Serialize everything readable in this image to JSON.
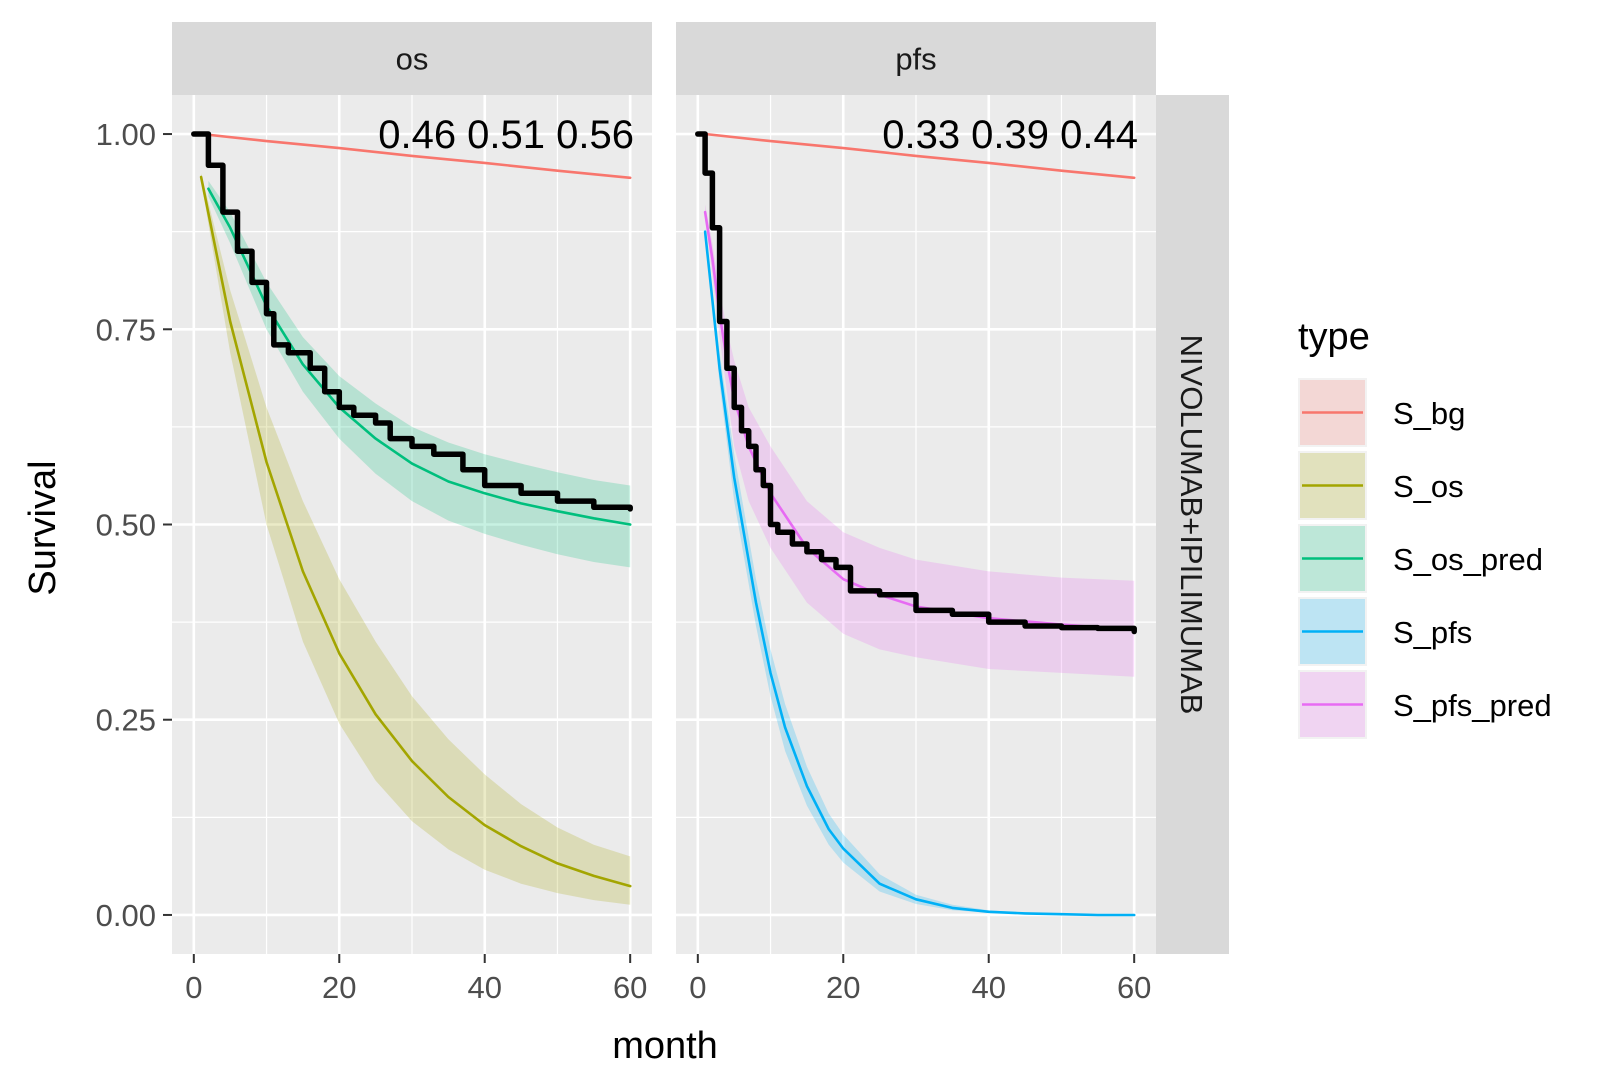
{
  "chart_data": {
    "type": "line",
    "xlabel": "month",
    "ylabel": "Survival",
    "xlim": [
      -3,
      63
    ],
    "ylim": [
      -0.05,
      1.05
    ],
    "x_ticks": [
      "0",
      "20",
      "40",
      "60"
    ],
    "y_ticks": [
      "0.00",
      "0.25",
      "0.50",
      "0.75",
      "1.00"
    ],
    "row_strip": "NIVOLUMAB+IPILIMUMAB",
    "legend": {
      "title": "type",
      "position": "right",
      "entries": [
        {
          "key": "S_bg",
          "label": "S_bg",
          "color": "#F8766D"
        },
        {
          "key": "S_os",
          "label": "S_os",
          "color": "#A3A500"
        },
        {
          "key": "S_os_pred",
          "label": "S_os_pred",
          "color": "#00BF7D"
        },
        {
          "key": "S_pfs",
          "label": "S_pfs",
          "color": "#00B0F6"
        },
        {
          "key": "S_pfs_pred",
          "label": "S_pfs_pred",
          "color": "#E76BF3"
        }
      ]
    },
    "grid": true,
    "panels": [
      {
        "id": "os",
        "strip": "os",
        "annotation": "0.46 0.51 0.56",
        "series": [
          {
            "key": "S_bg",
            "color": "#F8766D",
            "x": [
              1,
              10,
              20,
              30,
              40,
              50,
              60
            ],
            "y": [
              1.0,
              0.991,
              0.982,
              0.972,
              0.963,
              0.953,
              0.944
            ]
          },
          {
            "key": "S_os",
            "color": "#A3A500",
            "x": [
              1,
              5,
              10,
              15,
              20,
              25,
              30,
              35,
              40,
              45,
              50,
              55,
              60
            ],
            "y": [
              0.945,
              0.76,
              0.58,
              0.44,
              0.335,
              0.257,
              0.197,
              0.151,
              0.115,
              0.088,
              0.066,
              0.05,
              0.037
            ],
            "lower": [
              0.94,
              0.72,
              0.5,
              0.35,
              0.245,
              0.172,
              0.12,
              0.084,
              0.058,
              0.04,
              0.028,
              0.019,
              0.013
            ],
            "upper": [
              0.95,
              0.8,
              0.65,
              0.53,
              0.43,
              0.35,
              0.28,
              0.225,
              0.18,
              0.142,
              0.112,
              0.09,
              0.075
            ]
          },
          {
            "key": "S_os_pred",
            "color": "#00BF7D",
            "x": [
              2,
              5,
              10,
              15,
              20,
              25,
              30,
              35,
              40,
              45,
              50,
              55,
              60
            ],
            "y": [
              0.93,
              0.88,
              0.78,
              0.705,
              0.65,
              0.61,
              0.578,
              0.555,
              0.54,
              0.527,
              0.517,
              0.508,
              0.5
            ],
            "lower": [
              0.92,
              0.86,
              0.75,
              0.67,
              0.61,
              0.565,
              0.53,
              0.505,
              0.488,
              0.474,
              0.462,
              0.452,
              0.445
            ],
            "upper": [
              0.94,
              0.9,
              0.81,
              0.74,
              0.69,
              0.655,
              0.625,
              0.605,
              0.59,
              0.578,
              0.567,
              0.557,
              0.55
            ]
          },
          {
            "key": "KM_os",
            "color": "#000000",
            "x": [
              0,
              2,
              4,
              6,
              8,
              10,
              11,
              13,
              16,
              18,
              20,
              22,
              25,
              27,
              30,
              33,
              37,
              40,
              45,
              50,
              55,
              60
            ],
            "y": [
              1.0,
              0.96,
              0.9,
              0.85,
              0.81,
              0.77,
              0.73,
              0.72,
              0.7,
              0.67,
              0.65,
              0.64,
              0.63,
              0.61,
              0.6,
              0.59,
              0.57,
              0.55,
              0.54,
              0.53,
              0.522,
              0.52
            ]
          }
        ]
      },
      {
        "id": "pfs",
        "strip": "pfs",
        "annotation": "0.33 0.39 0.44",
        "series": [
          {
            "key": "S_bg",
            "color": "#F8766D",
            "x": [
              1,
              10,
              20,
              30,
              40,
              50,
              60
            ],
            "y": [
              1.0,
              0.991,
              0.982,
              0.972,
              0.963,
              0.953,
              0.944
            ]
          },
          {
            "key": "S_pfs",
            "color": "#00B0F6",
            "x": [
              1,
              3,
              5,
              8,
              10,
              12,
              15,
              18,
              20,
              25,
              30,
              35,
              40,
              45,
              50,
              55,
              60
            ],
            "y": [
              0.875,
              0.7,
              0.56,
              0.4,
              0.31,
              0.24,
              0.165,
              0.11,
              0.085,
              0.04,
              0.02,
              0.009,
              0.004,
              0.002,
              0.001,
              0.0,
              0.0
            ],
            "lower": [
              0.87,
              0.68,
              0.53,
              0.37,
              0.28,
              0.21,
              0.14,
              0.09,
              0.067,
              0.03,
              0.014,
              0.006,
              0.003,
              0.001,
              0.0,
              0.0,
              0.0
            ],
            "upper": [
              0.88,
              0.72,
              0.59,
              0.43,
              0.34,
              0.27,
              0.19,
              0.13,
              0.103,
              0.052,
              0.026,
              0.013,
              0.006,
              0.003,
              0.001,
              0.0,
              0.0
            ]
          },
          {
            "key": "S_pfs_pred",
            "color": "#E76BF3",
            "x": [
              1,
              2,
              3,
              4,
              5,
              7,
              10,
              15,
              20,
              25,
              30,
              40,
              50,
              60
            ],
            "y": [
              0.9,
              0.84,
              0.77,
              0.71,
              0.66,
              0.6,
              0.54,
              0.47,
              0.43,
              0.41,
              0.395,
              0.38,
              0.372,
              0.365
            ],
            "lower": [
              0.89,
              0.82,
              0.74,
              0.67,
              0.6,
              0.53,
              0.47,
              0.4,
              0.36,
              0.34,
              0.33,
              0.315,
              0.31,
              0.305
            ],
            "upper": [
              0.91,
              0.86,
              0.8,
              0.75,
              0.71,
              0.65,
              0.6,
              0.53,
              0.49,
              0.47,
              0.455,
              0.44,
              0.432,
              0.428
            ]
          },
          {
            "key": "KM_pfs",
            "color": "#000000",
            "x": [
              0,
              1,
              2,
              3,
              4,
              5,
              6,
              7,
              8,
              9,
              10,
              11,
              13,
              15,
              17,
              19,
              21,
              25,
              30,
              35,
              40,
              45,
              50,
              55,
              60
            ],
            "y": [
              1.0,
              0.95,
              0.88,
              0.76,
              0.7,
              0.65,
              0.62,
              0.6,
              0.57,
              0.55,
              0.5,
              0.49,
              0.475,
              0.465,
              0.455,
              0.445,
              0.415,
              0.41,
              0.39,
              0.385,
              0.375,
              0.37,
              0.368,
              0.367,
              0.363
            ]
          }
        ]
      }
    ]
  }
}
